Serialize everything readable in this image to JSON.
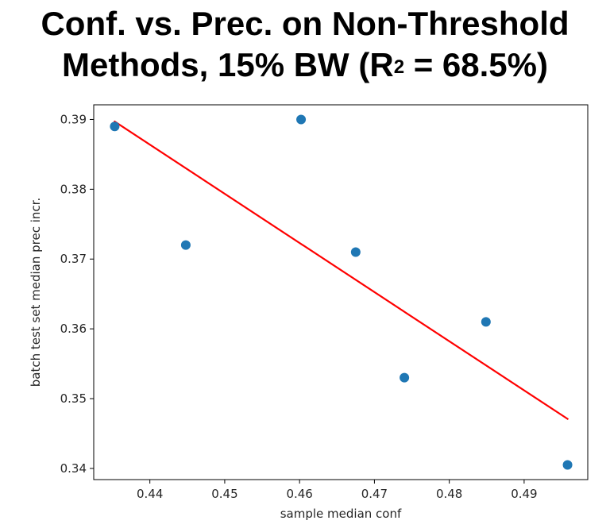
{
  "title": {
    "line1": "Conf. vs. Prec. on Non-Threshold",
    "line2_before": "Methods, 15% BW (R",
    "line2_sup": "2",
    "line2_after": " = 68.5%)"
  },
  "chart_data": {
    "type": "scatter",
    "xlabel": "sample median conf",
    "ylabel": "batch test set median prec incr.",
    "xlim": [
      0.4325,
      0.4985
    ],
    "ylim": [
      0.3384,
      0.3921
    ],
    "xticks": [
      0.44,
      0.45,
      0.46,
      0.47,
      0.48,
      0.49
    ],
    "xtick_labels": [
      "0.44",
      "0.45",
      "0.46",
      "0.47",
      "0.48",
      "0.49"
    ],
    "yticks": [
      0.34,
      0.35,
      0.36,
      0.37,
      0.38,
      0.39
    ],
    "ytick_labels": [
      "0.34",
      "0.35",
      "0.36",
      "0.37",
      "0.38",
      "0.39"
    ],
    "grid": false,
    "series": [
      {
        "points": [
          {
            "x": 0.4353,
            "y": 0.389
          },
          {
            "x": 0.4448,
            "y": 0.372
          },
          {
            "x": 0.4602,
            "y": 0.39
          },
          {
            "x": 0.4675,
            "y": 0.371
          },
          {
            "x": 0.474,
            "y": 0.353
          },
          {
            "x": 0.4849,
            "y": 0.361
          },
          {
            "x": 0.4958,
            "y": 0.3405
          }
        ],
        "color": "#1f77b4"
      }
    ],
    "fit_line": {
      "x": [
        0.4353,
        0.4958
      ],
      "y": [
        0.3897,
        0.3471
      ],
      "color": "#ff0000"
    }
  }
}
